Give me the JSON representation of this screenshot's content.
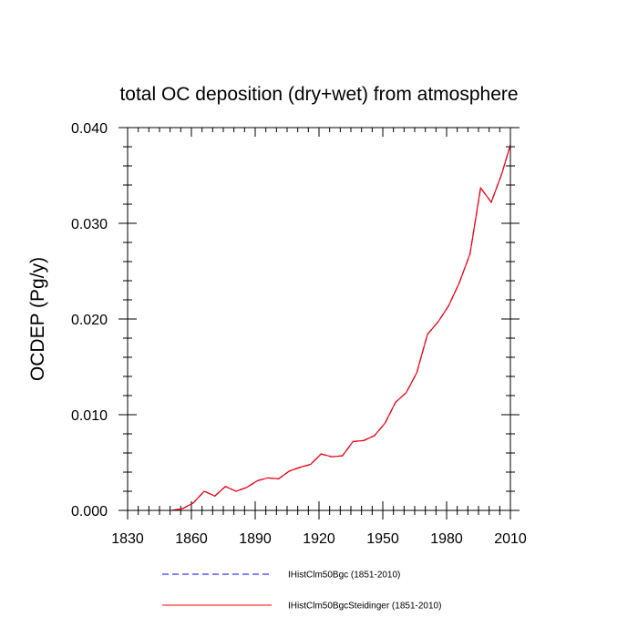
{
  "chart_data": {
    "type": "line",
    "title": "total OC deposition (dry+wet) from atmosphere",
    "xlabel": "",
    "ylabel": "OCDEP  (Pg/y)",
    "xlim": [
      1830,
      2010
    ],
    "ylim": [
      0.0,
      0.04
    ],
    "x_ticks": [
      "1830",
      "1860",
      "1890",
      "1920",
      "1950",
      "1980",
      "2010"
    ],
    "y_ticks": [
      "0.000",
      "0.010",
      "0.020",
      "0.030",
      "0.040"
    ],
    "grid": false,
    "legend_position": "bottom",
    "x": [
      1851,
      1856,
      1861,
      1866,
      1871,
      1876,
      1881,
      1886,
      1891,
      1896,
      1901,
      1906,
      1911,
      1916,
      1921,
      1926,
      1931,
      1936,
      1941,
      1946,
      1951,
      1956,
      1961,
      1966,
      1971,
      1976,
      1981,
      1986,
      1991,
      1996,
      2001,
      2006,
      2010
    ],
    "series": [
      {
        "name": "IHistClm50Bgc (1851-2010)",
        "color": "#0000ff",
        "style": "dashed",
        "values": [
          0.0,
          0.0002,
          0.0008,
          0.002,
          0.0015,
          0.0025,
          0.002,
          0.0024,
          0.0031,
          0.0034,
          0.0033,
          0.0041,
          0.0045,
          0.0048,
          0.0059,
          0.0056,
          0.0057,
          0.0072,
          0.0073,
          0.0078,
          0.0091,
          0.0113,
          0.0123,
          0.0144,
          0.0184,
          0.0197,
          0.0214,
          0.0238,
          0.0268,
          0.0337,
          0.0322,
          0.0352,
          0.0382
        ]
      },
      {
        "name": "IHistClm50BgcSteidinger (1851-2010)",
        "color": "#ff0000",
        "style": "solid",
        "values": [
          0.0,
          0.0002,
          0.0008,
          0.002,
          0.0015,
          0.0025,
          0.002,
          0.0024,
          0.0031,
          0.0034,
          0.0033,
          0.0041,
          0.0045,
          0.0048,
          0.0059,
          0.0056,
          0.0057,
          0.0072,
          0.0073,
          0.0078,
          0.0091,
          0.0113,
          0.0123,
          0.0144,
          0.0184,
          0.0197,
          0.0214,
          0.0238,
          0.0268,
          0.0337,
          0.0322,
          0.0352,
          0.0382
        ]
      }
    ]
  }
}
